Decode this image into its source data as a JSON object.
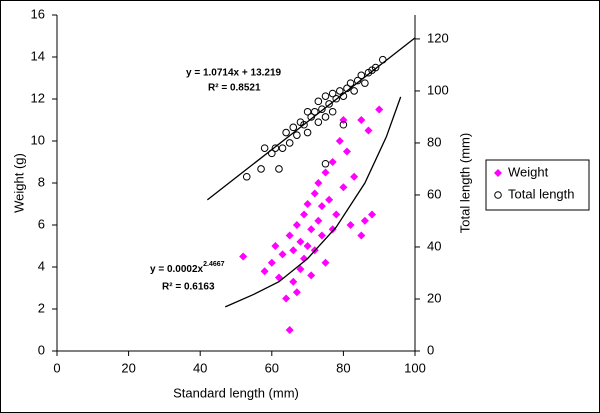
{
  "chart_data": {
    "type": "scatter",
    "x_label": "Standard length (mm)",
    "y_label": "Weight (g)",
    "y2_label": "Total length (mm)",
    "annotations": [
      "y = 1.0714x + 13.219",
      "R² = 0.8521",
      "y = 0.0002x",
      "2.4667",
      "R² = 0.6163"
    ],
    "xlim": [
      0,
      100
    ],
    "xticks": [
      0,
      20,
      40,
      60,
      80,
      100
    ],
    "ylim": [
      0,
      16
    ],
    "yticks": [
      0,
      2,
      4,
      6,
      8,
      10,
      12,
      14,
      16
    ],
    "y2lim": [
      0,
      129.2
    ],
    "y2ticks": [
      0,
      20,
      40,
      60,
      80,
      100,
      120
    ],
    "grid": false,
    "legend": "right",
    "series": [
      {
        "name": "Weight",
        "color": "#ff00ff",
        "marker": "diamond",
        "axis": "y",
        "x": [
          52,
          58,
          60,
          61,
          62,
          63,
          64,
          65,
          65,
          66,
          66,
          67,
          67,
          68,
          68,
          69,
          69,
          70,
          70,
          71,
          71,
          72,
          72,
          73,
          73,
          74,
          74,
          75,
          75,
          76,
          77,
          77,
          78,
          79,
          80,
          81,
          82,
          83,
          85,
          86,
          87,
          88,
          90,
          85,
          80
        ],
        "values": [
          4.5,
          3.8,
          4.2,
          5.0,
          3.5,
          4.6,
          2.5,
          1.0,
          5.5,
          3.3,
          4.8,
          6.0,
          2.8,
          5.2,
          3.9,
          6.5,
          4.4,
          7.0,
          5.0,
          5.8,
          3.6,
          7.5,
          4.8,
          6.2,
          8.0,
          5.5,
          6.9,
          8.5,
          4.2,
          7.2,
          9.0,
          5.8,
          6.5,
          10.0,
          7.8,
          9.5,
          6.0,
          8.3,
          11.0,
          6.2,
          10.5,
          6.5,
          11.5,
          5.5,
          11.0
        ]
      },
      {
        "name": "Total length",
        "color": "#000000",
        "marker": "circle",
        "axis": "y2",
        "x": [
          53,
          57,
          60,
          61,
          63,
          64,
          65,
          66,
          67,
          68,
          69,
          70,
          70,
          71,
          72,
          73,
          73,
          74,
          75,
          75,
          76,
          77,
          77,
          78,
          79,
          80,
          81,
          82,
          83,
          84,
          85,
          86,
          87,
          88,
          89,
          91,
          75,
          80,
          58,
          62
        ],
        "values": [
          67,
          70,
          76,
          78,
          78,
          84,
          80,
          86,
          83,
          88,
          87,
          92,
          84,
          90,
          92,
          96,
          88,
          93,
          98,
          90,
          95,
          99,
          92,
          97,
          100,
          98,
          101,
          103,
          100,
          104,
          106,
          103,
          107,
          108,
          109,
          112,
          72,
          87,
          78,
          70
        ]
      }
    ],
    "trendlines": [
      {
        "color": "#000000",
        "axis": "y2",
        "x": [
          42,
          100
        ],
        "values": [
          58.1,
          120.4
        ]
      },
      {
        "color": "#000000",
        "axis": "y",
        "x": [
          47,
          55,
          62,
          70,
          78,
          86,
          92,
          96
        ],
        "values": [
          2.1,
          2.7,
          3.3,
          4.4,
          5.9,
          8.0,
          10.2,
          12.1
        ]
      }
    ]
  }
}
